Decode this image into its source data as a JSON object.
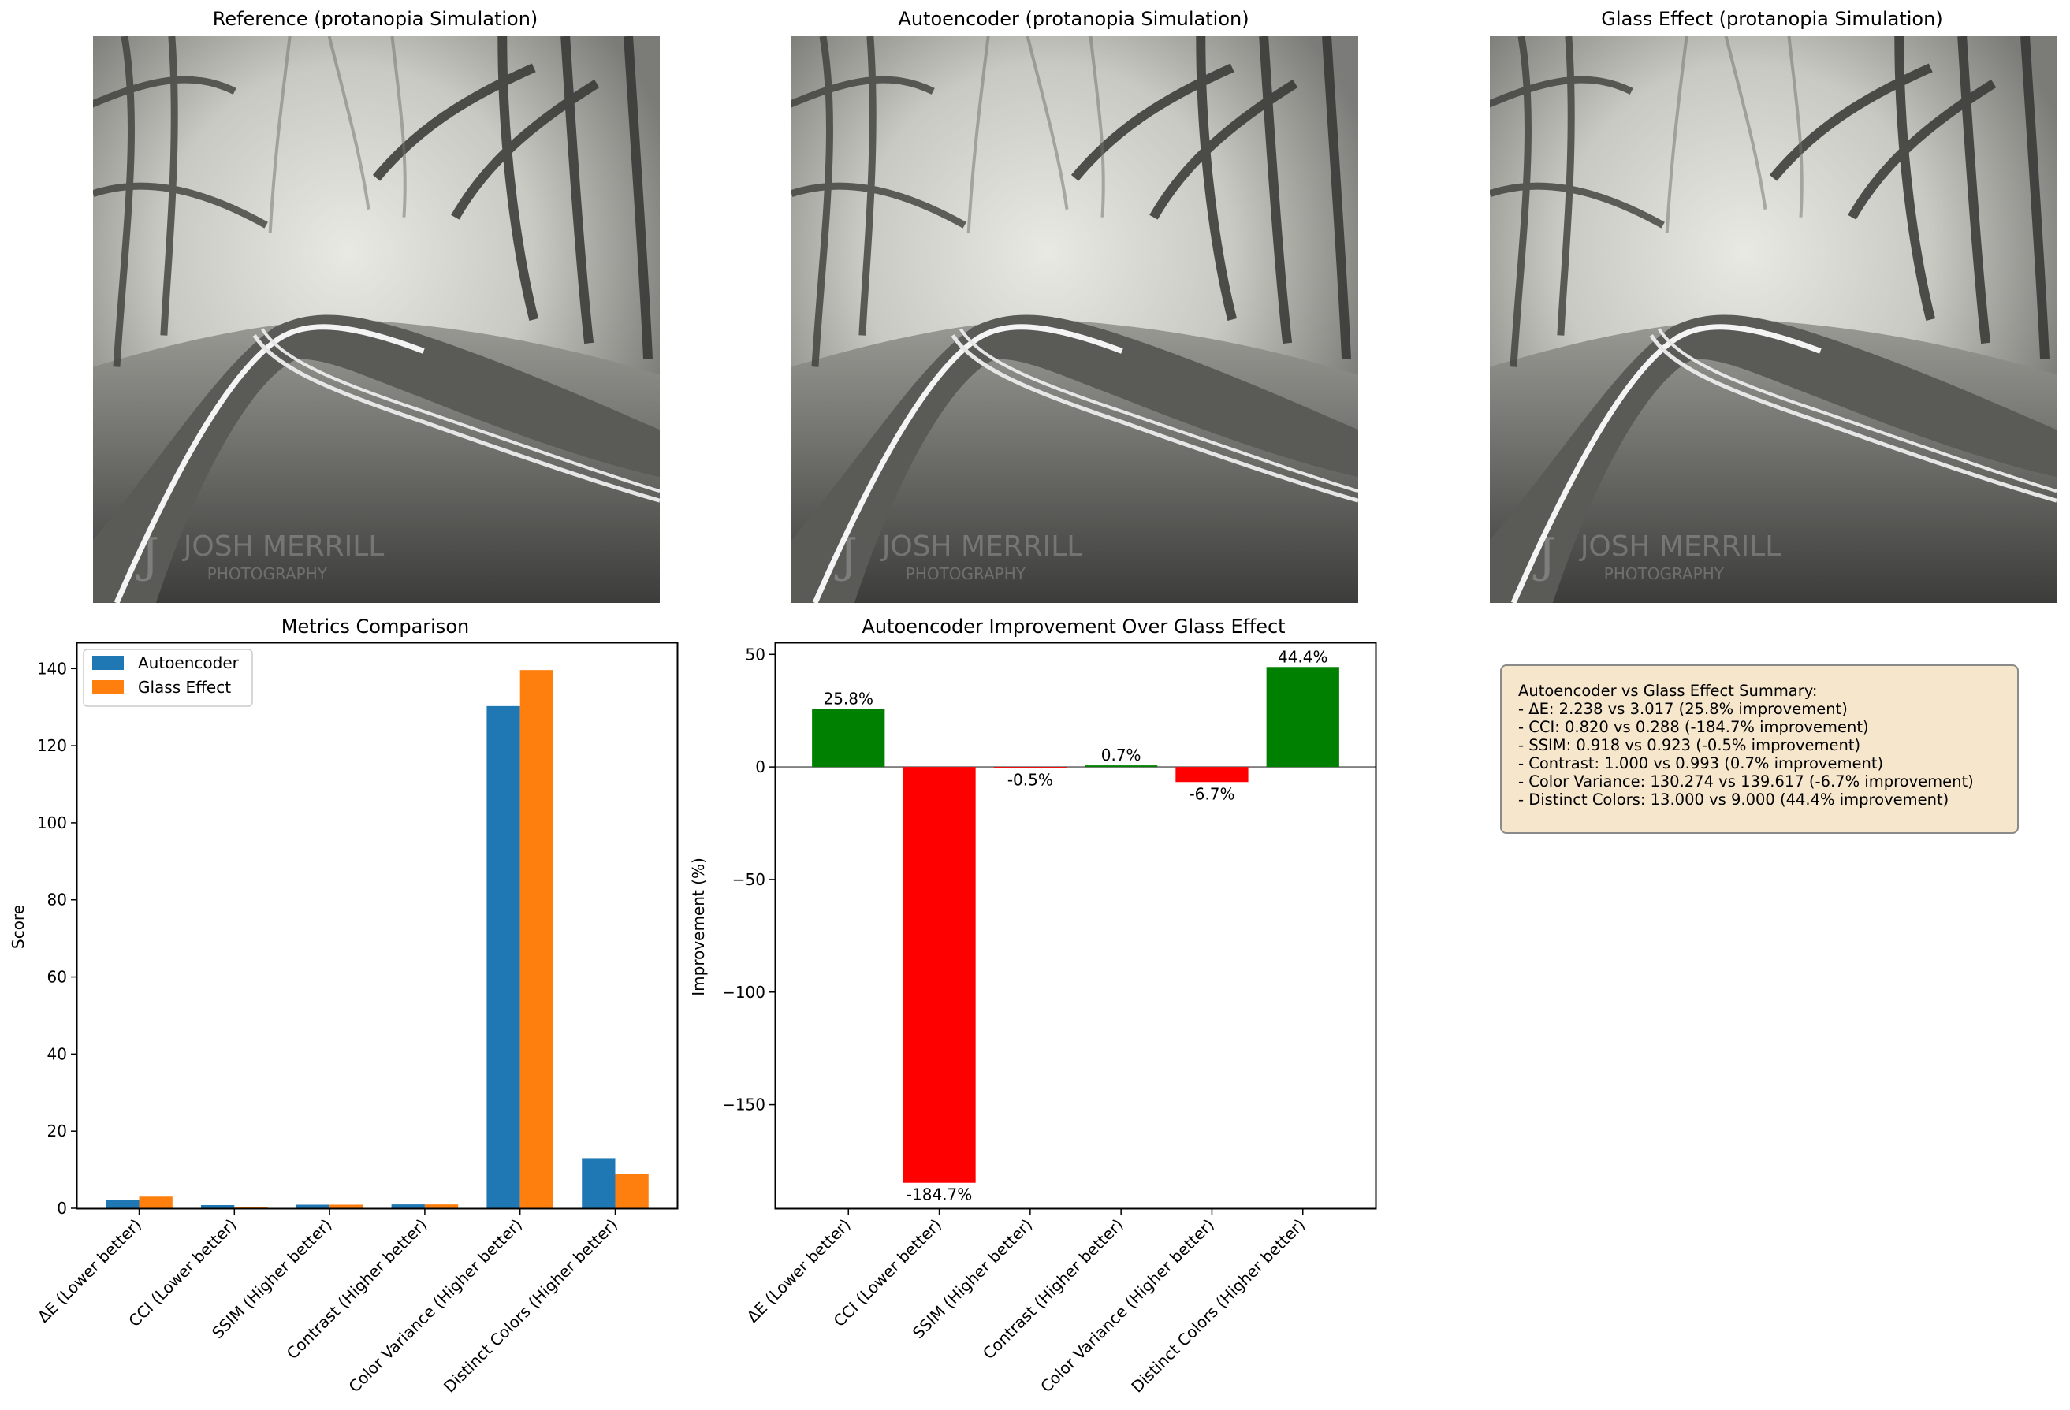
{
  "images": [
    {
      "title": "Reference (protanopia Simulation)",
      "watermark": "JOSH MERRILL PHOTOGRAPHY"
    },
    {
      "title": "Autoencoder (protanopia Simulation)",
      "watermark": "JOSH MERRILL PHOTOGRAPHY"
    },
    {
      "title": "Glass Effect (protanopia Simulation)",
      "watermark": "JOSH MERRILL PHOTOGRAPHY"
    }
  ],
  "summary": {
    "lines": [
      "Autoencoder vs Glass Effect Summary:",
      "- ΔE: 2.238 vs 3.017 (25.8% improvement)",
      "- CCI: 0.820 vs 0.288 (-184.7% improvement)",
      "- SSIM: 0.918 vs 0.923 (-0.5% improvement)",
      "- Contrast: 1.000 vs 0.993 (0.7% improvement)",
      "- Color Variance: 130.274 vs 139.617 (-6.7% improvement)",
      "- Distinct Colors: 13.000 vs 9.000 (44.4% improvement)"
    ]
  },
  "chart_data": [
    {
      "type": "bar",
      "title": "Metrics Comparison",
      "xlabel": "",
      "ylabel": "Score",
      "categories": [
        "ΔE (Lower better)",
        "CCI (Lower better)",
        "SSIM (Higher better)",
        "Contrast (Higher better)",
        "Color Variance (Higher better)",
        "Distinct Colors (Higher better)"
      ],
      "series": [
        {
          "name": "Autoencoder",
          "color": "#1f77b4",
          "values": [
            2.238,
            0.82,
            0.918,
            1.0,
            130.274,
            13.0
          ]
        },
        {
          "name": "Glass Effect",
          "color": "#ff7f0e",
          "values": [
            3.017,
            0.288,
            0.923,
            0.993,
            139.617,
            9.0
          ]
        }
      ],
      "ylim": [
        0,
        146.6
      ],
      "yticks": [
        0,
        20,
        40,
        60,
        80,
        100,
        120,
        140
      ],
      "legend": "top-left",
      "grid": false
    },
    {
      "type": "bar",
      "title": "Autoencoder Improvement Over Glass Effect",
      "xlabel": "",
      "ylabel": "Improvement (%)",
      "categories": [
        "ΔE (Lower better)",
        "CCI (Lower better)",
        "SSIM (Higher better)",
        "Contrast (Higher better)",
        "Color Variance (Higher better)",
        "Distinct Colors (Higher better)"
      ],
      "values": [
        25.8,
        -184.7,
        -0.5,
        0.7,
        -6.7,
        44.4
      ],
      "labels": [
        "25.8%",
        "-184.7%",
        "-0.5%",
        "0.7%",
        "-6.7%",
        "44.4%"
      ],
      "positive_color": "#008000",
      "negative_color": "#ff0000",
      "ylim": [
        -196,
        55
      ],
      "yticks": [
        -150,
        -100,
        -50,
        0,
        50
      ],
      "ytick_labels": [
        "−150",
        "−100",
        "−50",
        "0",
        "50"
      ],
      "zero_line": true,
      "grid": false
    }
  ]
}
